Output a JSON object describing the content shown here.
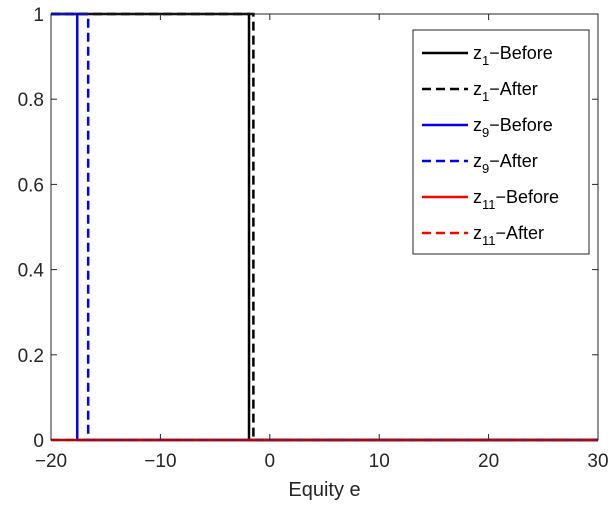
{
  "chart_data": {
    "type": "line",
    "xlabel": "Equity e",
    "ylabel": "",
    "title": "",
    "xlim": [
      -20,
      30
    ],
    "ylim": [
      0,
      1
    ],
    "xticks": [
      -20,
      -10,
      0,
      10,
      20,
      30
    ],
    "yticks": [
      0,
      0.2,
      0.4,
      0.6,
      0.8,
      1
    ],
    "xtick_labels": [
      "−20",
      "−10",
      "0",
      "10",
      "20",
      "30"
    ],
    "ytick_labels": [
      "0",
      "0.2",
      "0.4",
      "0.6",
      "0.8",
      "1"
    ],
    "grid": false,
    "legend_position": "top-right",
    "series": [
      {
        "name": "z1-Before",
        "legend_base": "z",
        "legend_sub": "1",
        "legend_suffix": "−Before",
        "color": "#000000",
        "dash": "solid",
        "x": [
          -20,
          -1.9,
          -1.9,
          30
        ],
        "y": [
          1,
          1,
          0,
          0
        ]
      },
      {
        "name": "z1-After",
        "legend_base": "z",
        "legend_sub": "1",
        "legend_suffix": "−After",
        "color": "#000000",
        "dash": "dashed",
        "x": [
          -20,
          -1.5,
          -1.5,
          30
        ],
        "y": [
          1,
          1,
          0,
          0
        ]
      },
      {
        "name": "z9-Before",
        "legend_base": "z",
        "legend_sub": "9",
        "legend_suffix": "−Before",
        "color": "#0000ff",
        "dash": "solid",
        "x": [
          -20,
          -17.6,
          -17.6,
          30
        ],
        "y": [
          1,
          1,
          0,
          0
        ]
      },
      {
        "name": "z9-After",
        "legend_base": "z",
        "legend_sub": "9",
        "legend_suffix": "−After",
        "color": "#0000ff",
        "dash": "dashed",
        "x": [
          -20,
          -16.6,
          -16.6,
          30
        ],
        "y": [
          1,
          1,
          0,
          0
        ]
      },
      {
        "name": "z11-Before",
        "legend_base": "z",
        "legend_sub": "11",
        "legend_suffix": "−Before",
        "color": "#ff0000",
        "dash": "solid",
        "x": [
          -20,
          30
        ],
        "y": [
          0,
          0
        ]
      },
      {
        "name": "z11-After",
        "legend_base": "z",
        "legend_sub": "11",
        "legend_suffix": "−After",
        "color": "#ff0000",
        "dash": "dashed",
        "x": [
          -20,
          30
        ],
        "y": [
          0,
          0
        ]
      }
    ]
  }
}
